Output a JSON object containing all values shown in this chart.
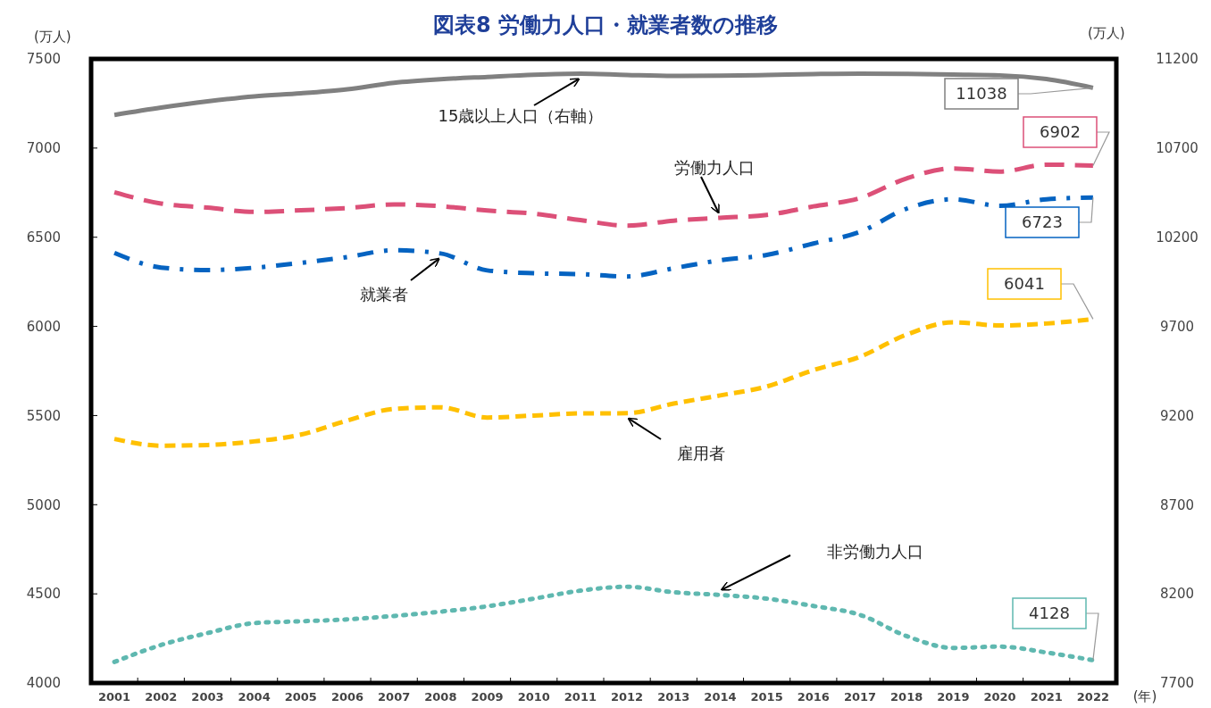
{
  "chart_data": {
    "type": "line",
    "title": "図表8 労働力人口・就業者数の推移",
    "ylabel": "(万人)",
    "y2label": "(万人)",
    "annotations": [
      "(年)"
    ],
    "categories": [
      "2001",
      "2002",
      "2003",
      "2004",
      "2005",
      "2006",
      "2007",
      "2008",
      "2009",
      "2010",
      "2011",
      "2012",
      "2013",
      "2014",
      "2015",
      "2016",
      "2017",
      "2018",
      "2019",
      "2020",
      "2021",
      "2022"
    ],
    "ylim": [
      4000,
      7500
    ],
    "yticks": [
      4000,
      4500,
      5000,
      5500,
      6000,
      6500,
      7000,
      7500
    ],
    "y2lim": [
      7700,
      11200
    ],
    "y2ticks": [
      7700,
      8200,
      8700,
      9200,
      9700,
      10200,
      10700,
      11200
    ],
    "grid": false,
    "marker": "none",
    "series": [
      {
        "name": "15歳以上人口（右軸）",
        "color": "#808080",
        "axis": "y2",
        "line_style": "solid",
        "values": [
          10886,
          10927,
          10962,
          10990,
          11007,
          11030,
          11066,
          11086,
          11099,
          11111,
          11117,
          11110,
          11105,
          11106,
          11110,
          11115,
          11118,
          11116,
          11112,
          11108,
          11087,
          11038
        ],
        "value_labels": [
          null,
          null,
          null,
          null,
          null,
          null,
          null,
          null,
          null,
          null,
          null,
          null,
          null,
          null,
          null,
          null,
          null,
          null,
          null,
          null,
          null,
          "11038"
        ]
      },
      {
        "name": "労働力人口",
        "color": "#dc5078",
        "line_style": "dashed",
        "values": [
          6752,
          6689,
          6666,
          6642,
          6651,
          6664,
          6684,
          6674,
          6650,
          6632,
          6596,
          6565,
          6593,
          6609,
          6625,
          6673,
          6720,
          6830,
          6886,
          6868,
          6907,
          6902
        ],
        "value_labels": [
          null,
          null,
          null,
          null,
          null,
          null,
          null,
          null,
          null,
          null,
          null,
          null,
          null,
          null,
          null,
          null,
          null,
          null,
          null,
          null,
          null,
          "6902"
        ]
      },
      {
        "name": "就業者",
        "color": "#0563c1",
        "line_style": "dashdot",
        "values": [
          6412,
          6330,
          6316,
          6329,
          6356,
          6389,
          6427,
          6409,
          6314,
          6298,
          6293,
          6280,
          6326,
          6371,
          6401,
          6465,
          6530,
          6660,
          6713,
          6676,
          6713,
          6723
        ],
        "value_labels": [
          null,
          null,
          null,
          null,
          null,
          null,
          null,
          null,
          null,
          null,
          null,
          null,
          null,
          null,
          null,
          null,
          null,
          null,
          null,
          null,
          null,
          "6723"
        ]
      },
      {
        "name": "雇用者",
        "color": "#ffc000",
        "line_style": "dashed",
        "values": [
          5369,
          5331,
          5335,
          5355,
          5393,
          5472,
          5537,
          5546,
          5489,
          5500,
          5512,
          5513,
          5567,
          5613,
          5663,
          5755,
          5830,
          5954,
          6023,
          6005,
          6016,
          6041
        ],
        "value_labels": [
          null,
          null,
          null,
          null,
          null,
          null,
          null,
          null,
          null,
          null,
          null,
          null,
          null,
          null,
          null,
          null,
          null,
          null,
          null,
          null,
          null,
          "6041"
        ]
      },
      {
        "name": "非労働力人口",
        "color": "#5fb8b0",
        "line_style": "dotted",
        "values": [
          4118,
          4213,
          4280,
          4336,
          4346,
          4357,
          4376,
          4400,
          4430,
          4473,
          4518,
          4540,
          4509,
          4494,
          4473,
          4432,
          4382,
          4263,
          4197,
          4204,
          4171,
          4128
        ],
        "value_labels": [
          null,
          null,
          null,
          null,
          null,
          null,
          null,
          null,
          null,
          null,
          null,
          null,
          null,
          null,
          null,
          null,
          null,
          null,
          null,
          null,
          null,
          "4128"
        ]
      }
    ]
  }
}
